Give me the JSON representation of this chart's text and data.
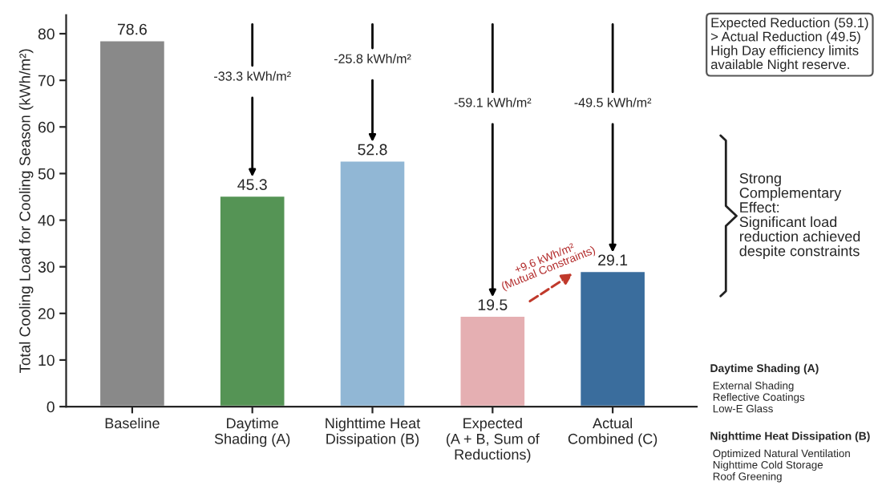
{
  "chart_data": {
    "type": "bar",
    "ylabel": "Total Cooling Load for Cooling Season (kWh/m²)",
    "categories": [
      "Baseline",
      "Daytime\nShading (A)",
      "Nighttime Heat\nDissipation (B)",
      "Expected\n(A + B, Sum of\nReductions)",
      "Actual\nCombined (C)"
    ],
    "values": [
      78.6,
      45.3,
      52.8,
      19.5,
      29.1
    ],
    "colors": [
      "#898989",
      "#4a9e4a",
      "#86b9e0",
      "#eea6aa",
      "#2a6ead"
    ],
    "data_labels": true,
    "ylim": [
      0,
      84
    ],
    "yticks": [
      0,
      10,
      20,
      30,
      40,
      50,
      60,
      70,
      80
    ],
    "grid": false,
    "legend": false,
    "annotations": [
      "Expected Reduction (59.1)\n> Actual Reduction (49.5)\nHigh Day efficiency limits\navailable Night reserve.",
      "Strong\nComplementary\nEffect:\nSignificant load\nreduction achieved\ndespite constraints",
      "Daytime Shading (A)\nExternal Shading\nReflective Coatings\nLow-E Glass",
      "Nighttime Heat Dissipation (B)\nOptimized Natural Ventilation\nNighttime Cold Storage\nRoof Greening",
      "-33.3 kWh/m²",
      "-25.8 kWh/m²",
      "-59.1 kWh/m²",
      "-49.5 kWh/m²",
      "+9.6 kWh/m²\n(Mutual Constraints)"
    ]
  }
}
